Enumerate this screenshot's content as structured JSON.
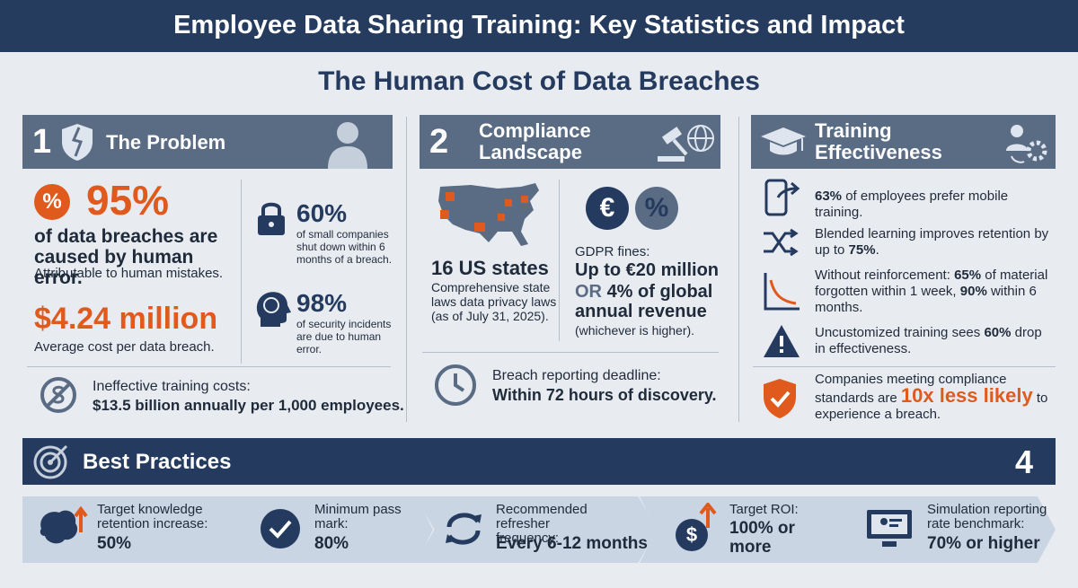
{
  "header": {
    "title": "Employee Data Sharing Training: Key Statistics and Impact"
  },
  "subtitle": "The Human Cost of Data Breaches",
  "problem": {
    "number": "1",
    "title": "The Problem",
    "badge": "%",
    "main_value": "95%",
    "main_text": "of data breaches are caused by human error.",
    "main_note": "Attributable to human mistakes.",
    "cost_value": "$4.24 million",
    "cost_label": "Average cost per data breach.",
    "side_stats": [
      {
        "value": "60%",
        "text": "of small companies shut down within 6 months of a breach."
      },
      {
        "value": "98%",
        "text": "of security incidents are due to human error."
      }
    ],
    "training_cost": {
      "label": "Ineffective training costs:",
      "value": "$13.5 billion annually per 1,000 employees."
    }
  },
  "compliance": {
    "number": "2",
    "title": "Compliance Landscape",
    "states_value": "16 US states",
    "states_text": "Comprehensive state laws data privacy laws (as of July 31, 2025).",
    "icons": [
      "€",
      "%"
    ],
    "gdpr_label": "GDPR fines:",
    "gdpr_value": "Up to €20 million",
    "gdpr_or": "OR",
    "gdpr_value2": "4% of global annual revenue",
    "gdpr_note": "(whichever is higher).",
    "deadline_label": "Breach reporting deadline:",
    "deadline_value": "Within 72 hours of discovery."
  },
  "effectiveness": {
    "title": "Training Effectiveness",
    "items": [
      [
        {
          "text": "63%",
          "bold": true
        },
        {
          "text": " of employees prefer mobile training."
        }
      ],
      [
        {
          "text": "Blended learning improves retention by up to "
        },
        {
          "text": "75%",
          "bold": true
        },
        {
          "text": "."
        }
      ],
      [
        {
          "text": "Without reinforcement: "
        },
        {
          "text": "65%",
          "bold": true
        },
        {
          "text": " of material forgotten within 1 week, "
        },
        {
          "text": "90%",
          "bold": true
        },
        {
          "text": " within 6 months."
        }
      ],
      [
        {
          "text": "Uncustomized training sees "
        },
        {
          "text": "60%",
          "bold": true
        },
        {
          "text": " drop in effectiveness."
        }
      ],
      [
        {
          "text": "Companies meeting compliance standards are "
        },
        {
          "text": "10x less likely",
          "accent": true
        },
        {
          "text": " to experience a breach."
        }
      ]
    ]
  },
  "best_practices": {
    "title": "Best Practices",
    "number": "4",
    "roi_icon": "$",
    "items": [
      {
        "label": "Target knowledge retention increase:",
        "value": "50%"
      },
      {
        "label": "Minimum pass mark:",
        "value": "80%"
      },
      {
        "label": "Recommended refresher frequency:",
        "value": "Every 6-12 months"
      },
      {
        "label": "Target ROI:",
        "value": "100% or more"
      },
      {
        "label": "Simulation reporting rate benchmark:",
        "value": "70% or higher"
      }
    ]
  }
}
